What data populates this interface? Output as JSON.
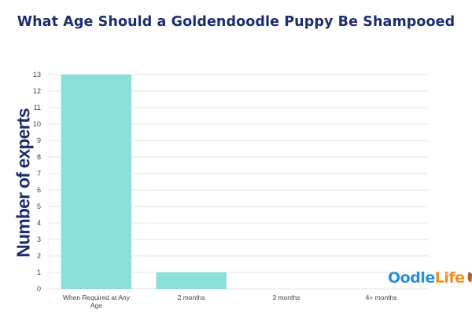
{
  "title": "What Age Should a Goldendoodle Puppy Be Shampooed",
  "logo": {
    "part1": "Oodle",
    "part2": "Life"
  },
  "colors": {
    "bar": "#8adfd8",
    "title": "#1f2d6e",
    "grid": "#e6e6e6",
    "tick": "#444444"
  },
  "chart_data": {
    "type": "bar",
    "title": "What Age Should a Goldendoodle Puppy Be Shampooed",
    "xlabel": "",
    "ylabel": "Number of experts",
    "categories": [
      [
        "When Required at Any",
        "Age"
      ],
      [
        "2 months"
      ],
      [
        "3 months"
      ],
      [
        "4+ months"
      ]
    ],
    "values": [
      13,
      1,
      0,
      0
    ],
    "ylim": [
      0,
      13
    ],
    "yticks": [
      0,
      1,
      2,
      3,
      4,
      5,
      6,
      7,
      8,
      9,
      10,
      11,
      12,
      13
    ],
    "grid": true,
    "legend": "none"
  }
}
